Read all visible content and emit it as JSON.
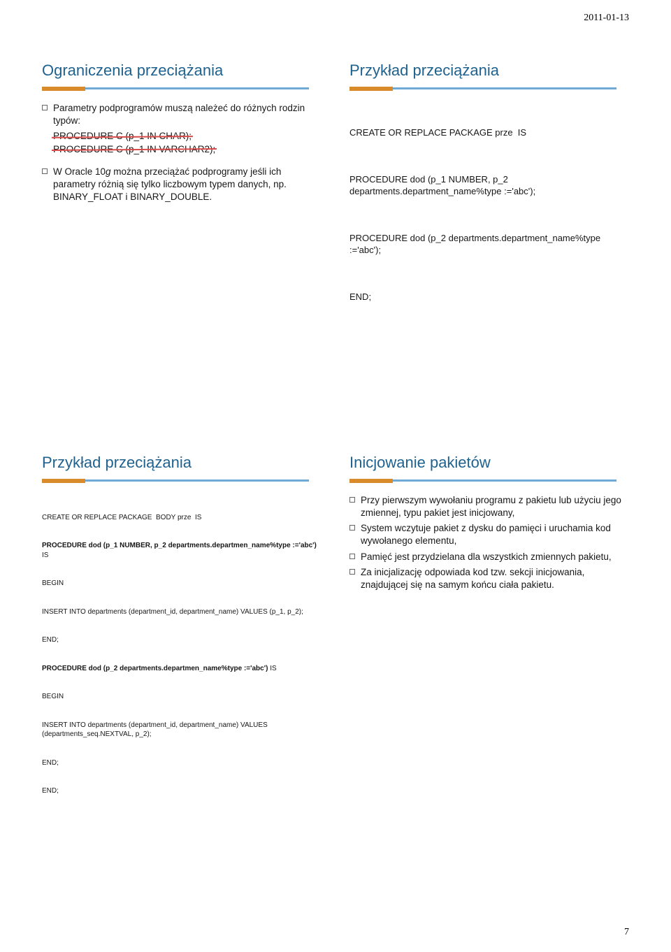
{
  "header": {
    "date": "2011-01-13"
  },
  "footer": {
    "page": "7"
  },
  "colors": {
    "title": "#1f628e",
    "bar_orange": "#d98b2b",
    "bar_blue": "#6fa9d6",
    "strike": "#d94a4a",
    "text": "#171717",
    "background": "#ffffff"
  },
  "slide1": {
    "title": "Ograniczenia przeciążania",
    "bullet1_lead": "Parametry podprogramów muszą należeć do różnych rodzin typów:",
    "strike1": "PROCEDURE C (p_1 IN CHAR);",
    "strike2": "PROCEDURE C (p_1 IN VARCHAR2);",
    "bullet2_prefix": "W Oracle 10",
    "bullet2_g": "g",
    "bullet2_rest": " można przeciążać podprogramy jeśli ich parametry różnią się tylko liczbowym typem danych, np. BINARY_FLOAT i BINARY_DOUBLE."
  },
  "slide2": {
    "title": "Przykład przeciążania",
    "line1": "CREATE OR REPLACE PACKAGE prze  IS",
    "line2": "PROCEDURE dod (p_1 NUMBER, p_2 departments.department_name%type :='abc');",
    "line3": "PROCEDURE dod (p_2 departments.department_name%type :='abc');",
    "line4": "END;"
  },
  "slide3": {
    "title": "Przykład przeciążania",
    "l1": "CREATE OR REPLACE PACKAGE  BODY prze  IS",
    "l2a": "PROCEDURE dod (p_1 NUMBER, p_2 departments.departmen_name%type :='abc')",
    "l2b": " IS",
    "l3": "BEGIN",
    "l4": "INSERT INTO departments (department_id, department_name) VALUES (p_1, p_2);",
    "l5": "END;",
    "l6a": "PROCEDURE dod (p_2 departments.departmen_name%type :='abc')",
    "l6b": " IS",
    "l7": "BEGIN",
    "l8": "INSERT INTO departments (department_id, department_name) VALUES (departments_seq.NEXTVAL, p_2);",
    "l9": "END;",
    "l10": "END;"
  },
  "slide4": {
    "title": "Inicjowanie pakietów",
    "b1": "Przy pierwszym wywołaniu programu z pakietu lub użyciu jego zmiennej, typu pakiet jest inicjowany,",
    "b2": "System wczytuje pakiet z dysku do pamięci i uruchamia kod wywołanego elementu,",
    "b3": "Pamięć jest przydzielana dla wszystkich zmiennych pakietu,",
    "b4": "Za inicjalizację odpowiada kod tzw. sekcji inicjowania, znajdującej się na samym końcu ciała pakietu."
  }
}
